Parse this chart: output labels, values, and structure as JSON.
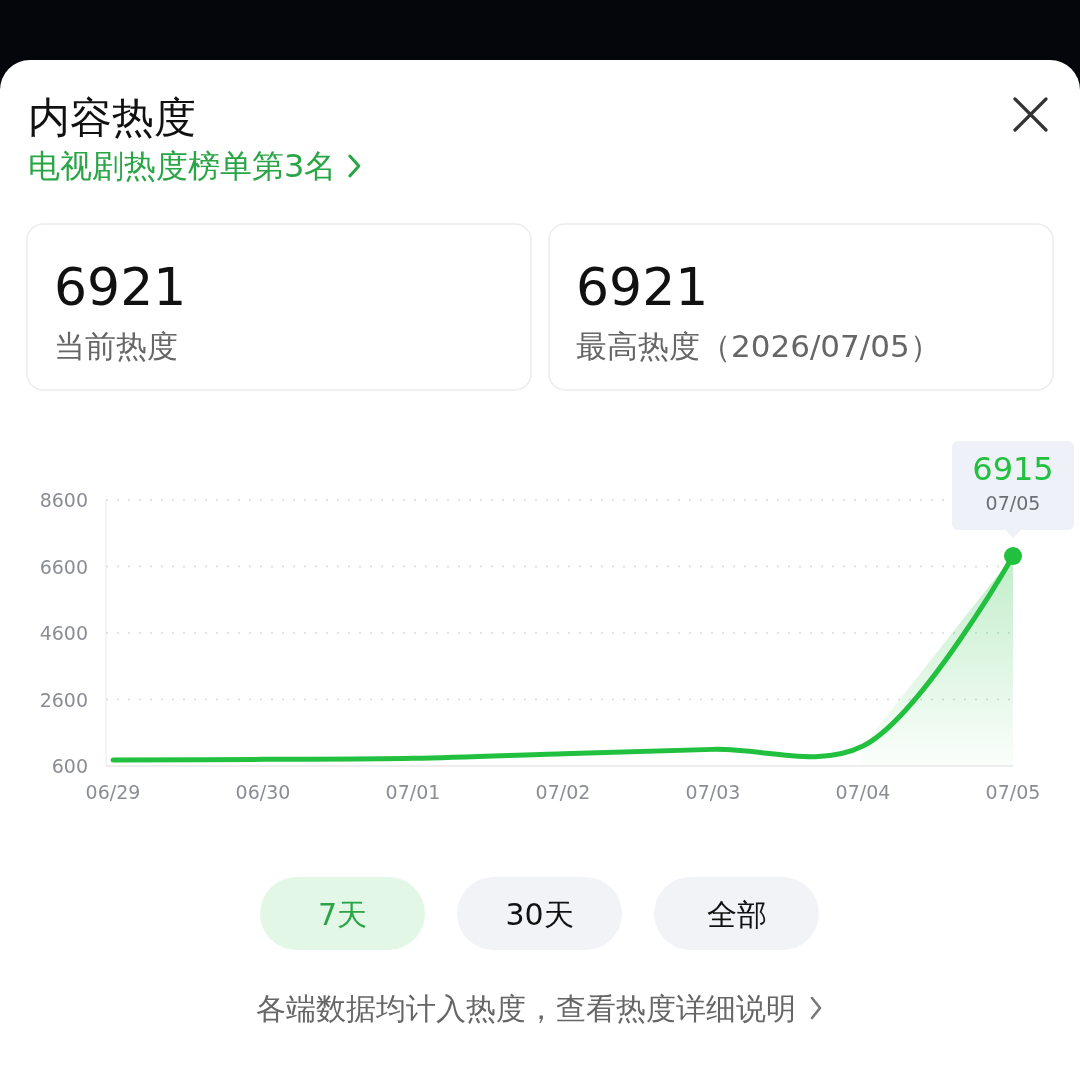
{
  "chart_data": {
    "type": "line",
    "title": "内容热度",
    "subtitle": "电视剧热度榜单第3名",
    "categories": [
      "06/29",
      "06/30",
      "07/01",
      "07/02",
      "07/03",
      "07/04",
      "07/05"
    ],
    "series": [
      {
        "type": "area",
        "color": "#22c03f",
        "values": [
          null,
          null,
          null,
          null,
          null,
          1200,
          6915
        ]
      },
      {
        "color": "#22c03f",
        "values": [
          780,
          800,
          830,
          970,
          1100,
          1200,
          6915
        ],
        "value_labels": [
          null,
          null,
          null,
          null,
          null,
          null,
          "6915"
        ]
      }
    ],
    "ylim": [
      600,
      8600
    ],
    "yticks": [
      600,
      2600,
      4600,
      6600,
      8600
    ],
    "grid": "y",
    "annotations": [
      "6921",
      "当前热度",
      "6921",
      "最高热度（2026/07/05）",
      "7天",
      "30天",
      "全部",
      "各端数据均计入热度，查看热度详细说明"
    ]
  }
}
